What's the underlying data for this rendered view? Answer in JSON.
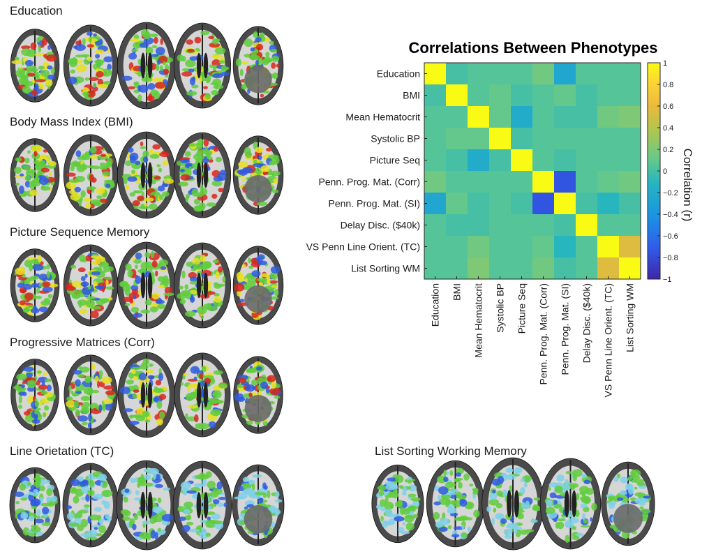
{
  "panels": [
    {
      "id": "education",
      "title": "Education",
      "color_style": "hot"
    },
    {
      "id": "bmi",
      "title": "Body Mass Index (BMI)",
      "color_style": "hot"
    },
    {
      "id": "picture",
      "title": "Picture Sequence Memory",
      "color_style": "hot"
    },
    {
      "id": "progmat",
      "title": "Progressive Matrices (Corr)",
      "color_style": "mixed"
    },
    {
      "id": "line",
      "title": "Line Orietation (TC)",
      "color_style": "cool"
    },
    {
      "id": "listsort",
      "title": "List Sorting Working Memory",
      "color_style": "cool"
    }
  ],
  "colors": {
    "brain_gray": "#4a4a4a",
    "brain_white": "#e6e6e6",
    "tract_green": "#5fcc3c",
    "tract_yellow": "#e8e020",
    "tract_red": "#d8261c",
    "tract_blue": "#2e5be0",
    "tract_cyan": "#7fd0e8"
  },
  "chart_data": {
    "type": "heatmap",
    "title": "Correlations Between Phenotypes",
    "labels": [
      "Education",
      "BMI",
      "Mean Hematocrit",
      "Systolic BP",
      "Picture Seq",
      "Penn. Prog. Mat. (Corr)",
      "Penn. Prog. Mat. (SI)",
      "Delay Disc. ($40k)",
      "VS Penn Line Orient. (TC)",
      "List Sorting WM"
    ],
    "matrix": [
      [
        1.0,
        0.0,
        0.05,
        0.05,
        0.05,
        0.15,
        -0.25,
        0.05,
        0.05,
        0.05
      ],
      [
        0.0,
        1.0,
        0.05,
        0.1,
        0.0,
        0.05,
        0.1,
        0.0,
        0.05,
        0.05
      ],
      [
        0.05,
        0.05,
        1.0,
        0.1,
        -0.2,
        0.05,
        0.0,
        0.0,
        0.15,
        0.2
      ],
      [
        0.05,
        0.1,
        0.1,
        1.0,
        0.0,
        0.05,
        0.05,
        0.05,
        0.05,
        0.05
      ],
      [
        0.05,
        0.0,
        -0.2,
        0.0,
        1.0,
        0.05,
        0.0,
        0.05,
        0.05,
        0.05
      ],
      [
        0.15,
        0.05,
        0.05,
        0.05,
        0.05,
        1.0,
        -0.75,
        0.05,
        0.1,
        0.15
      ],
      [
        -0.25,
        0.1,
        0.0,
        0.05,
        0.0,
        -0.75,
        1.0,
        0.0,
        -0.1,
        0.0
      ],
      [
        0.05,
        0.0,
        0.0,
        0.05,
        0.05,
        0.05,
        0.0,
        1.0,
        0.05,
        0.05
      ],
      [
        0.05,
        0.05,
        0.15,
        0.05,
        0.05,
        0.1,
        -0.1,
        0.05,
        1.0,
        0.55
      ],
      [
        0.05,
        0.05,
        0.2,
        0.05,
        0.05,
        0.15,
        0.0,
        0.05,
        0.55,
        1.0
      ]
    ],
    "colorbar": {
      "label": "Correlation (r)",
      "range": [
        -1,
        1
      ],
      "ticks": [
        "1",
        "0.8",
        "0.6",
        "0.4",
        "0.2",
        "0",
        "−0.2",
        "−0.4",
        "−0.6",
        "−0.8",
        "−1"
      ]
    }
  }
}
